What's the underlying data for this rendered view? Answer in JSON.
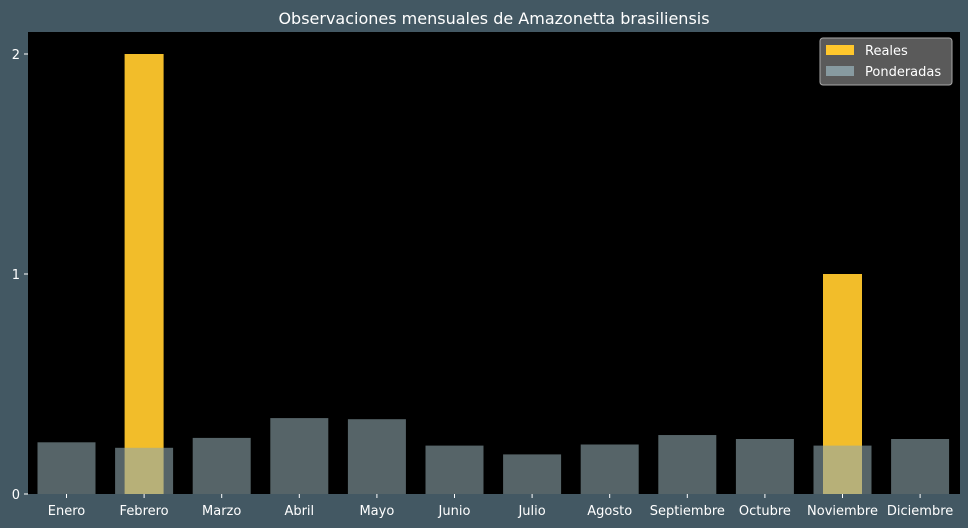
{
  "chart_data": {
    "type": "bar",
    "title": "Observaciones mensuales de Amazonetta brasiliensis",
    "xlabel": "",
    "ylabel": "",
    "categories": [
      "Enero",
      "Febrero",
      "Marzo",
      "Abril",
      "Mayo",
      "Junio",
      "Julio",
      "Agosto",
      "Septiembre",
      "Octubre",
      "Noviembre",
      "Diciembre"
    ],
    "ylim": [
      0,
      2.1
    ],
    "yticks": [
      "0",
      "1",
      "2"
    ],
    "series": [
      {
        "name": "Reales",
        "color": "#ffc72c",
        "values": [
          0,
          2,
          0,
          0,
          0,
          0,
          0,
          0,
          0,
          0,
          1,
          0
        ]
      },
      {
        "name": "Ponderadas",
        "color": "#8fa6ad",
        "values": [
          0.235,
          0.21,
          0.255,
          0.345,
          0.34,
          0.22,
          0.18,
          0.225,
          0.268,
          0.25,
          0.22,
          0.25
        ]
      }
    ],
    "legend": "top-right",
    "grid": false,
    "plot_background": "#000000",
    "figure_background": "#435863"
  }
}
